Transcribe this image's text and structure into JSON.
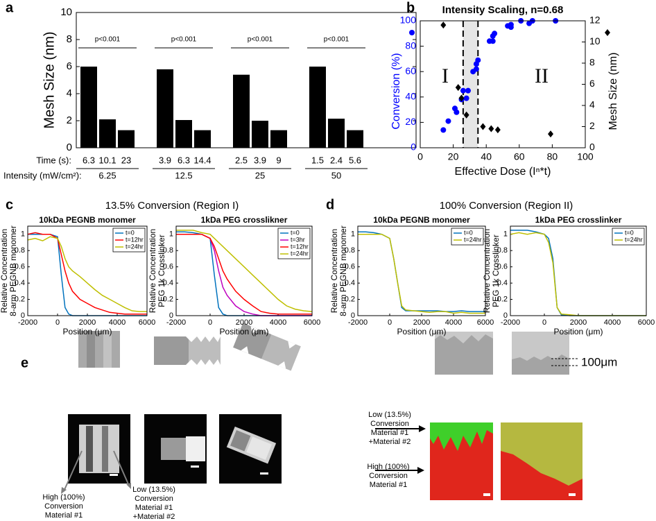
{
  "figure": {
    "panel_labels": [
      "a",
      "b",
      "c",
      "d",
      "e"
    ],
    "group_titles": [
      "13.5% Conversion (Region I)",
      "100% Conversion (Region II)"
    ],
    "panel_e": {
      "scale_label": "100μm",
      "left_high": [
        "High (100%)",
        "Conversion",
        "Material #1"
      ],
      "left_low": [
        "Low (13.5%)",
        "Conversion",
        "Material #1",
        "+Material #2"
      ],
      "right_low": [
        "Low (13.5%)",
        "Conversion",
        "Material #1",
        "+Material #2"
      ],
      "right_high": [
        "High (100%)",
        "Conversion",
        "Material #1"
      ]
    }
  },
  "chart_data": [
    {
      "type": "bar",
      "ylabel": "Mesh Size (nm)",
      "category_axis_label": "Time (s):",
      "group_axis_label": "Intensity (mW/cm²):",
      "categories": [
        "6.3",
        "10.1",
        "23",
        "3.9",
        "6.3",
        "14.4",
        "2.5",
        "3.9",
        "9",
        "1.5",
        "2.4",
        "5.6"
      ],
      "values": [
        6.0,
        2.1,
        1.3,
        5.8,
        2.05,
        1.3,
        5.4,
        2.0,
        1.3,
        6.0,
        2.15,
        1.3
      ],
      "groups": [
        "6.25",
        "12.5",
        "25",
        "50"
      ],
      "annotations": [
        "p<0.001",
        "p<0.001",
        "p<0.001",
        "p<0.001"
      ],
      "color": "#000000",
      "ylim": [
        0,
        10
      ],
      "yticks": [
        0,
        2,
        4,
        6,
        8,
        10
      ]
    },
    {
      "type": "scatter",
      "title": "Intensity Scaling, n=0.68",
      "xlabel": "Effective Dose (Iⁿ*t)",
      "ylabel": "Conversion (%)",
      "y2label": "Mesh Size (nm)",
      "xlim": [
        0,
        100
      ],
      "xticks": [
        0,
        20,
        40,
        60,
        80,
        100
      ],
      "ylim": [
        0,
        100
      ],
      "yticks": [
        0,
        20,
        40,
        60,
        80,
        100
      ],
      "y2lim": [
        0,
        12
      ],
      "y2ticks": [
        0,
        2,
        4,
        6,
        8,
        10,
        12
      ],
      "shaded_region": [
        26,
        35
      ],
      "region_labels": [
        "I",
        "II"
      ],
      "series": [
        {
          "color": "#0000ff",
          "marker": "circle",
          "x": [
            14,
            17,
            21,
            22,
            25,
            26,
            28,
            29,
            32,
            34,
            34,
            35,
            42,
            44,
            44,
            45,
            53,
            55,
            55,
            61,
            66,
            68,
            82
          ],
          "values": [
            14,
            21,
            31,
            28,
            38,
            45,
            39,
            45,
            60,
            62,
            66,
            69,
            84,
            84,
            88,
            90,
            96,
            95,
            97,
            100,
            98,
            100,
            100
          ]
        },
        {
          "color": "#000000",
          "marker": "diamond",
          "axis": "y2",
          "x": [
            14,
            23,
            25,
            28,
            38,
            43,
            47,
            79
          ],
          "values": [
            11.6,
            5.7,
            4.7,
            3.1,
            2.0,
            1.8,
            1.7,
            1.3
          ]
        }
      ]
    },
    {
      "type": "line",
      "title": "10kDa PEGNB monomer",
      "ylabel": [
        "Relative Concentration",
        "8-arm PEGNB monomer"
      ],
      "xlabel": "Position (μm)",
      "xlim": [
        -2000,
        6000
      ],
      "xticks": [
        -2000,
        0,
        2000,
        4000,
        6000
      ],
      "ylim": [
        0,
        1.1
      ],
      "yticks": [
        0,
        0.2,
        0.4,
        0.6,
        0.8,
        1
      ],
      "x": [
        -2000,
        -1500,
        -1000,
        -500,
        0,
        250,
        500,
        750,
        1000,
        1500,
        2000,
        2500,
        3000,
        3500,
        4000,
        4500,
        5000,
        5500,
        6000
      ],
      "series": [
        {
          "name": "t=0",
          "color": "#0072bd",
          "values": [
            1,
            1,
            1,
            1,
            0.97,
            0.5,
            0.1,
            0.02,
            0,
            0,
            0,
            0,
            0,
            0,
            0,
            0,
            0,
            0,
            0
          ]
        },
        {
          "name": "t=12hr",
          "color": "#ff0000",
          "values": [
            1,
            1.02,
            1,
            1,
            0.95,
            0.75,
            0.55,
            0.4,
            0.3,
            0.2,
            0.15,
            0.1,
            0.07,
            0.04,
            0.03,
            0.02,
            0.02,
            0.02,
            0.02
          ]
        },
        {
          "name": "t=24hr",
          "color": "#bfbf00",
          "values": [
            0.93,
            0.95,
            0.92,
            0.97,
            0.95,
            0.85,
            0.7,
            0.6,
            0.55,
            0.48,
            0.4,
            0.32,
            0.25,
            0.2,
            0.15,
            0.1,
            0.06,
            0.05,
            0.05
          ]
        }
      ]
    },
    {
      "type": "line",
      "title": "1kDa PEG crosslikner",
      "ylabel": [
        "Relative Concentration",
        "PEG 1k Crosslinker"
      ],
      "xlabel": "Position (μm)",
      "xlim": [
        -2000,
        6000
      ],
      "xticks": [
        -2000,
        0,
        2000,
        4000,
        6000
      ],
      "ylim": [
        0,
        1.1
      ],
      "yticks": [
        0,
        0.2,
        0.4,
        0.6,
        0.8,
        1
      ],
      "x": [
        -2000,
        -1500,
        -1000,
        -500,
        0,
        250,
        500,
        750,
        1000,
        1500,
        2000,
        2500,
        3000,
        3500,
        4000,
        4500,
        5000,
        5500,
        6000
      ],
      "series": [
        {
          "name": "t=0",
          "color": "#0072bd",
          "values": [
            1.03,
            1.03,
            1.02,
            1,
            0.95,
            0.5,
            0.1,
            0.02,
            0,
            0,
            0,
            0,
            0,
            0,
            0,
            0,
            0,
            0,
            0
          ]
        },
        {
          "name": "t=3hr",
          "color": "#bf00bf",
          "values": [
            1,
            1,
            1,
            1,
            0.95,
            0.8,
            0.55,
            0.35,
            0.25,
            0.12,
            0.05,
            0.02,
            0,
            0,
            0,
            0,
            0,
            0,
            0
          ]
        },
        {
          "name": "t=12hr",
          "color": "#ff0000",
          "values": [
            1,
            1,
            1,
            1,
            0.95,
            0.85,
            0.7,
            0.55,
            0.45,
            0.3,
            0.2,
            0.12,
            0.05,
            0.03,
            0.02,
            0.02,
            0.02,
            0.02,
            0.02
          ]
        },
        {
          "name": "t=24hr",
          "color": "#bfbf00",
          "values": [
            1.05,
            1.05,
            1.05,
            1.02,
            1,
            0.95,
            0.9,
            0.85,
            0.8,
            0.7,
            0.6,
            0.5,
            0.4,
            0.3,
            0.2,
            0.12,
            0.08,
            0.06,
            0.05
          ]
        }
      ]
    },
    {
      "type": "line",
      "title": "10kDa PEGNB monomer",
      "ylabel": [
        "Relative Concentration",
        "8-arm PEGNB monomer"
      ],
      "xlabel": "Position (μm)",
      "xlim": [
        -2000,
        6000
      ],
      "xticks": [
        -2000,
        0,
        2000,
        4000,
        6000
      ],
      "ylim": [
        0,
        1.1
      ],
      "yticks": [
        0,
        0.2,
        0.4,
        0.6,
        0.8,
        1
      ],
      "x": [
        -2000,
        -1500,
        -1000,
        -500,
        0,
        250,
        500,
        750,
        1000,
        1500,
        2000,
        2500,
        3000,
        3500,
        4000,
        4500,
        5000,
        5500,
        6000
      ],
      "series": [
        {
          "name": "t=0",
          "color": "#0072bd",
          "values": [
            1.03,
            1.03,
            1.02,
            1,
            0.95,
            0.7,
            0.4,
            0.1,
            0.06,
            0.06,
            0.06,
            0.06,
            0.06,
            0.05,
            0.05,
            0.06,
            0.05,
            0.05,
            0.05
          ]
        },
        {
          "name": "t=24hr",
          "color": "#bfbf00",
          "values": [
            1,
            1,
            1,
            1,
            0.95,
            0.7,
            0.4,
            0.12,
            0.07,
            0.06,
            0.05,
            0.04,
            0.05,
            0.05,
            0.03,
            0.04,
            0.03,
            0.03,
            0.03
          ]
        }
      ]
    },
    {
      "type": "line",
      "title": "1kDa PEG crosslinker",
      "ylabel": [
        "Relative Concentration",
        "PEG 1k Crosslinker"
      ],
      "xlabel": "Position (μm)",
      "xlim": [
        -2000,
        6000
      ],
      "xticks": [
        -2000,
        0,
        2000,
        4000,
        6000
      ],
      "ylim": [
        0,
        1.1
      ],
      "yticks": [
        0,
        0.2,
        0.4,
        0.6,
        0.8,
        1
      ],
      "x": [
        -2000,
        -1500,
        -1000,
        -500,
        0,
        250,
        500,
        750,
        1000,
        1500,
        2000,
        2500,
        3000,
        3500,
        4000,
        4500,
        5000,
        5500,
        6000
      ],
      "series": [
        {
          "name": "t=0",
          "color": "#0072bd",
          "values": [
            1.05,
            1.05,
            1.05,
            1.03,
            1,
            0.95,
            0.7,
            0.1,
            0.01,
            0,
            0,
            0,
            0,
            0,
            0,
            0,
            0,
            0,
            0
          ]
        },
        {
          "name": "t=24hr",
          "color": "#bfbf00",
          "values": [
            1,
            1.02,
            1,
            1.02,
            1,
            0.9,
            0.65,
            0.1,
            0.02,
            0.01,
            0,
            0,
            0,
            0,
            0,
            0,
            0,
            0,
            0
          ]
        }
      ]
    }
  ]
}
